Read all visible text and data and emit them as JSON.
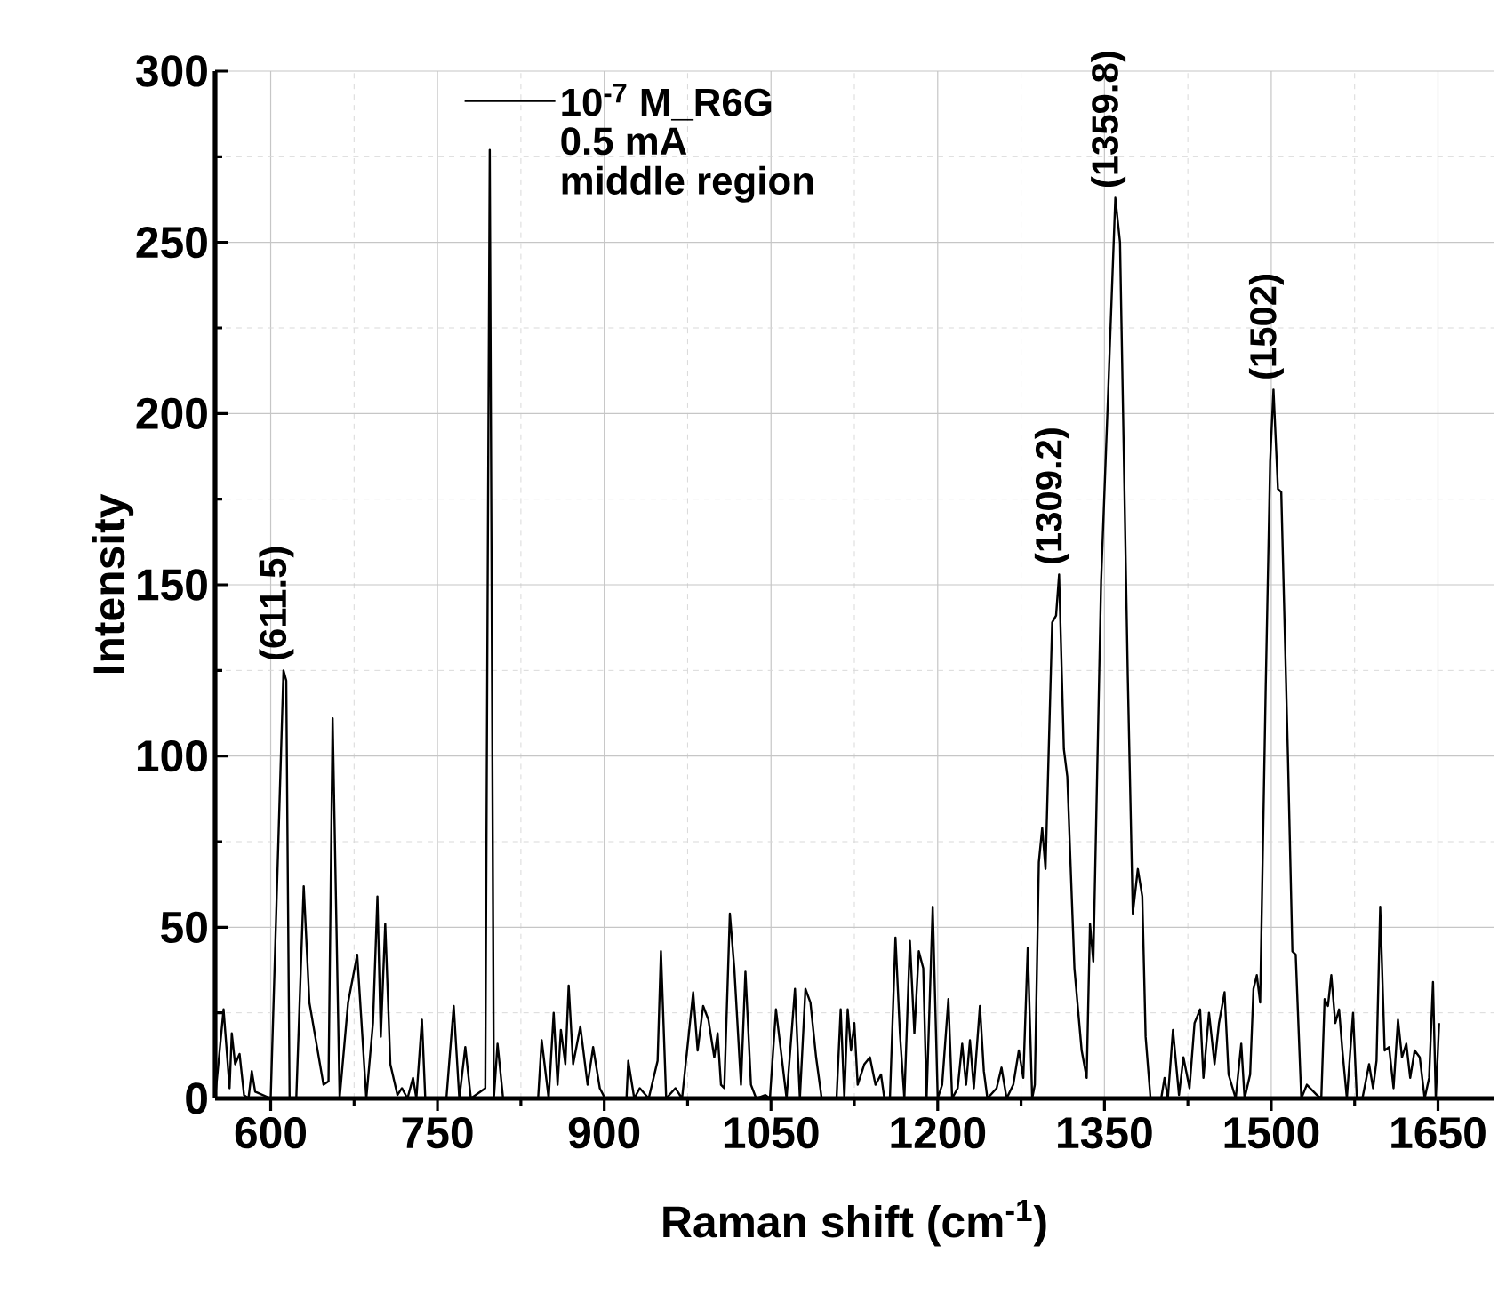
{
  "chart_data": {
    "type": "line",
    "xlabel": "Raman shift (cm$^{-1}$)",
    "ylabel": "Intensity",
    "xlim": [
      550,
      1700
    ],
    "ylim": [
      0,
      300
    ],
    "xticks": [
      600,
      750,
      900,
      1050,
      1200,
      1350,
      1500,
      1650
    ],
    "yticks": [
      0,
      50,
      100,
      150,
      200,
      250,
      300
    ],
    "grid": true,
    "legend": "top",
    "marker": "none",
    "line_style": "solid",
    "annotations": [
      "0.5 mA",
      "middle region",
      {
        "text": "(611.5)",
        "x": 611.5,
        "y": 125
      },
      {
        "text": "(1309.2)",
        "x": 1309.2,
        "y": 153
      },
      {
        "text": "(1359.8)",
        "x": 1359.8,
        "y": 263
      },
      {
        "text": "(1502)",
        "x": 1502,
        "y": 207
      }
    ],
    "series": [
      {
        "name": "10$^{-7}$ M_R6G",
        "color": "#000000",
        "x": [
          550,
          557.6,
          563,
          565,
          568,
          572,
          576,
          580,
          583,
          586,
          600,
          611.5,
          614,
          617,
          623,
          629.7,
          634.8,
          647.5,
          652,
          655.7,
          662,
          669.6,
          677.8,
          686,
          692,
          696,
          699,
          703,
          707.6,
          714,
          718,
          723,
          728,
          731,
          736,
          739,
          758,
          764.6,
          769.6,
          775,
          780,
          793,
          797,
          800.7,
          804,
          809,
          840.5,
          843.7,
          850,
          854.5,
          858,
          861,
          865,
          868,
          872,
          878.5,
          885,
          890,
          896,
          900.7,
          920,
          921.6,
          927,
          932,
          940,
          948,
          951,
          955.7,
          964,
          970,
          980,
          984,
          989,
          993.7,
          999,
          1002,
          1005,
          1008,
          1013,
          1017,
          1023,
          1027,
          1032,
          1036.7,
          1045,
          1049,
          1054.5,
          1060,
          1064,
          1071.6,
          1076,
          1081,
          1085.5,
          1090.6,
          1095.6,
          1109,
          1112.7,
          1116,
          1119,
          1122,
          1125,
          1128,
          1134,
          1139,
          1144,
          1149,
          1152,
          1157,
          1162,
          1166,
          1170,
          1175,
          1179,
          1183,
          1187,
          1190,
          1195.5,
          1200,
          1204,
          1209.6,
          1213,
          1218,
          1222,
          1225.5,
          1229,
          1232.5,
          1238,
          1241.5,
          1244.7,
          1253,
          1257.4,
          1262,
          1268,
          1273,
          1277,
          1281,
          1285,
          1287.4,
          1291,
          1294,
          1297,
          1303,
          1306.5,
          1309.2,
          1313.5,
          1316.6,
          1323,
          1329.5,
          1334,
          1337,
          1340,
          1347,
          1353,
          1359.8,
          1364,
          1371,
          1375.5,
          1380,
          1384,
          1387,
          1391.4,
          1401,
          1404,
          1407,
          1411.6,
          1417,
          1421,
          1426.5,
          1431,
          1436,
          1439,
          1444,
          1449,
          1453,
          1458,
          1461.6,
          1468,
          1473,
          1476,
          1481,
          1484,
          1487,
          1490,
          1495,
          1499,
          1502,
          1506,
          1509,
          1515,
          1519,
          1522,
          1527,
          1532,
          1541,
          1545,
          1548,
          1551,
          1554,
          1557.6,
          1561,
          1564,
          1568,
          1573.6,
          1577,
          1582,
          1588,
          1591.6,
          1594.7,
          1598,
          1602,
          1606,
          1610,
          1614,
          1617.6,
          1621.5,
          1625,
          1629,
          1633.6,
          1638,
          1642,
          1645.5,
          1648,
          1651
        ],
        "values": [
          0,
          26,
          3,
          19,
          10,
          13,
          1,
          0,
          8,
          2,
          0,
          125,
          122,
          0,
          0,
          62,
          28,
          4,
          5,
          111,
          0,
          28,
          42,
          0,
          22,
          59,
          18,
          51,
          10,
          1,
          3,
          0,
          6,
          0,
          23,
          0,
          0,
          27,
          0,
          15,
          0,
          3,
          277,
          0,
          16,
          0,
          0,
          17,
          0,
          25,
          4,
          20,
          10,
          33,
          10,
          21,
          4,
          15,
          3,
          0,
          0,
          11,
          0,
          3,
          0,
          11,
          43,
          0,
          3,
          0,
          31,
          14,
          27,
          23,
          12,
          19,
          4,
          3,
          54,
          38,
          4,
          37,
          4,
          0,
          1,
          0,
          26,
          11,
          0,
          32,
          0,
          32,
          28,
          12,
          0,
          0,
          26,
          0,
          26,
          14,
          22,
          4,
          10,
          12,
          4,
          7,
          0,
          0,
          47,
          19,
          0,
          46,
          19,
          43,
          38,
          0,
          56,
          0,
          4,
          29,
          0,
          3,
          16,
          4,
          17,
          3,
          27,
          8,
          0,
          3,
          9,
          0,
          4,
          14,
          6,
          44,
          0,
          4,
          69,
          79,
          67,
          139,
          141,
          153,
          102,
          94,
          38,
          14,
          6,
          51,
          40,
          151,
          203,
          263,
          250,
          123,
          54,
          67,
          59,
          18,
          0,
          0,
          6,
          0,
          20,
          1,
          12,
          3,
          22,
          26,
          6,
          25,
          10,
          22,
          31,
          7,
          0,
          16,
          0,
          7,
          32,
          36,
          28,
          120,
          186,
          207,
          178,
          177,
          100,
          43,
          42,
          0,
          4,
          1,
          0,
          29,
          27,
          36,
          22,
          26,
          14,
          0,
          25,
          0,
          0,
          10,
          3,
          11,
          56,
          14,
          15,
          3,
          23,
          12,
          16,
          6,
          14,
          12,
          0,
          6,
          34,
          0,
          22
        ]
      }
    ]
  }
}
